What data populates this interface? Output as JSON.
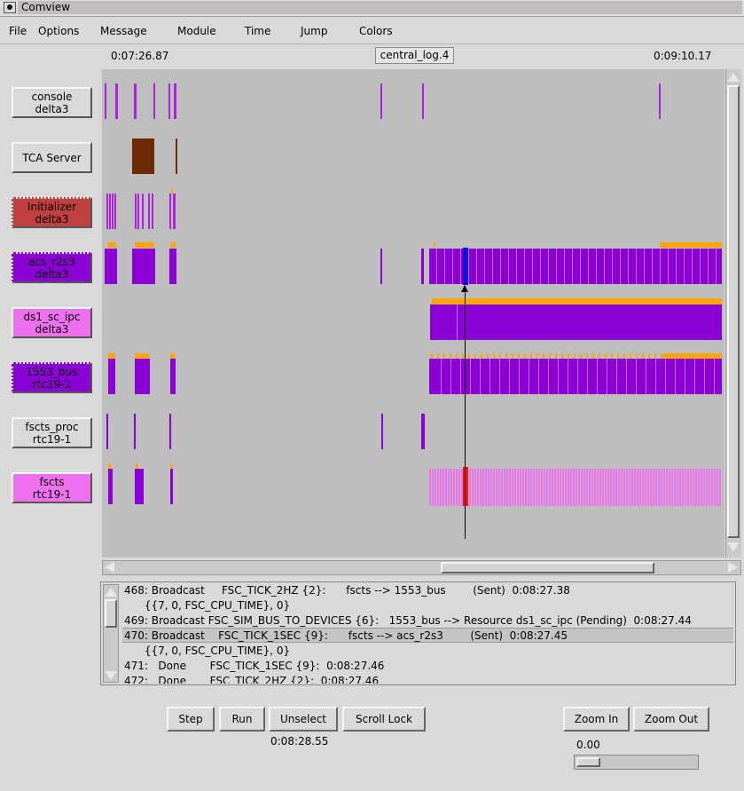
{
  "window": {
    "title": "Comview"
  },
  "menu": [
    "File",
    "Options",
    "Message",
    "Module",
    "Time",
    "Jump",
    "Colors"
  ],
  "header": {
    "start_time": "0:07:26.87",
    "log_name": "central_log.4",
    "end_time": "0:09:10.17"
  },
  "modules": [
    {
      "line1": "console",
      "line2": "delta3",
      "color": "#d9d9d9"
    },
    {
      "line1": "TCA Server",
      "line2": "",
      "color": "#d9d9d9"
    },
    {
      "line1": "Initializer",
      "line2": "delta3",
      "color": "#c04040"
    },
    {
      "line1": "acs_r2s3",
      "line2": "delta3",
      "color": "#8b00d4"
    },
    {
      "line1": "ds1_sc_ipc",
      "line2": "delta3",
      "color": "#ee70ee"
    },
    {
      "line1": "1553_bus",
      "line2": "rtc19-1",
      "color": "#8b00d4"
    },
    {
      "line1": "fscts_proc",
      "line2": "rtc19-1",
      "color": "#d9d9d9"
    },
    {
      "line1": "fscts",
      "line2": "rtc19-1",
      "color": "#ee70ee"
    }
  ],
  "messages": [
    {
      "text": "468: Broadcast     FSC_TICK_2HZ {2}:      fscts --> 1553_bus        (Sent)  0:08:27.38"
    },
    {
      "text": "      {{7, 0, FSC_CPU_TIME}, 0}"
    },
    {
      "text": "469: Broadcast FSC_SIM_BUS_TO_DEVICES {6}:   1553_bus --> Resource ds1_sc_ipc (Pending)  0:08:27.44"
    },
    {
      "text": "470: Broadcast    FSC_TICK_1SEC {9}:      fscts --> acs_r2s3        (Sent)  0:08:27.45"
    },
    {
      "text": "      {{7, 0, FSC_CPU_TIME}, 0}"
    },
    {
      "text": "471:   Done       FSC_TICK_1SEC {9}:  0:08:27.46"
    },
    {
      "text": "472:   Done       FSC_TICK_2HZ {2}:  0:08:27.46"
    }
  ],
  "controls": {
    "step": "Step",
    "run": "Run",
    "unselect": "Unselect",
    "scroll_lock": "Scroll Lock",
    "current_time": "0:08:28.55",
    "zoom_in": "Zoom In",
    "zoom_out": "Zoom Out",
    "zoom_value": "0.00"
  },
  "colors": {
    "timeline_bg": "#bebebe",
    "purple": "#8b00d4",
    "violet": "#b020e0",
    "orange": "#ffa500",
    "pink": "#ee70ee",
    "brown": "#6e2a00",
    "blue": "#1010e0",
    "red": "#ff1010"
  }
}
